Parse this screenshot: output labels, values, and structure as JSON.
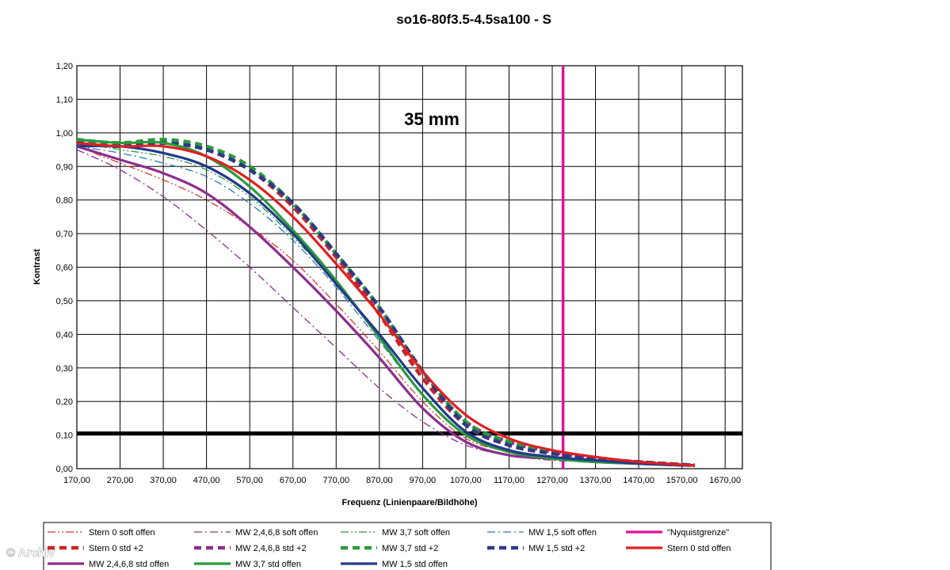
{
  "chart_data": {
    "type": "line",
    "title": "so16-80f3.5-4.5sa100 - S",
    "annotation": "35 mm",
    "xlabel": "Frequenz (Linienpaare/Bildhöhe)",
    "ylabel": "Kontrast",
    "xlim": [
      170,
      1710
    ],
    "ylim": [
      0,
      1.2
    ],
    "x_ticks": [
      "170,00",
      "270,00",
      "370,00",
      "470,00",
      "570,00",
      "670,00",
      "770,00",
      "870,00",
      "970,00",
      "1070,00",
      "1170,00",
      "1270,00",
      "1370,00",
      "1470,00",
      "1570,00",
      "1670,00"
    ],
    "y_ticks": [
      "0,00",
      "0,10",
      "0,20",
      "0,30",
      "0,40",
      "0,50",
      "0,60",
      "0,70",
      "0,80",
      "0,90",
      "1,00",
      "1,10",
      "1,20"
    ],
    "grid": true,
    "legend_position": "bottom",
    "reference_lines": [
      {
        "orientation": "vertical",
        "x": 1295,
        "color": "#e0109a",
        "label": "\"Nyquistgrenze\""
      },
      {
        "orientation": "horizontal",
        "y": 0.105,
        "color": "#000000",
        "label": ""
      }
    ],
    "series": [
      {
        "name": "Stern 0 soft offen",
        "color": "#d83a2a",
        "style": "dashdotdot",
        "x": [
          170,
          270,
          370,
          470,
          570,
          670,
          770,
          870,
          970,
          1070,
          1170,
          1270,
          1370,
          1470,
          1570,
          1600
        ],
        "y": [
          0.96,
          0.91,
          0.86,
          0.8,
          0.72,
          0.62,
          0.49,
          0.35,
          0.2,
          0.09,
          0.05,
          0.03,
          0.02,
          0.015,
          0.01,
          0.01
        ]
      },
      {
        "name": "MW 2,4,6,8 soft offen",
        "color": "#8e2d8e",
        "style": "dashdot",
        "x": [
          170,
          270,
          370,
          470,
          570,
          670,
          770,
          870,
          970,
          1070,
          1170,
          1270,
          1370,
          1470,
          1570,
          1600
        ],
        "y": [
          0.95,
          0.89,
          0.81,
          0.71,
          0.6,
          0.48,
          0.36,
          0.24,
          0.14,
          0.07,
          0.04,
          0.025,
          0.02,
          0.015,
          0.01,
          0.01
        ]
      },
      {
        "name": "MW 3,7 soft offen",
        "color": "#2a9a3a",
        "style": "dashdotdot",
        "x": [
          170,
          270,
          370,
          470,
          570,
          670,
          770,
          870,
          970,
          1070,
          1170,
          1270,
          1370,
          1470,
          1570,
          1600
        ],
        "y": [
          0.97,
          0.95,
          0.93,
          0.89,
          0.81,
          0.69,
          0.55,
          0.39,
          0.22,
          0.1,
          0.05,
          0.03,
          0.02,
          0.015,
          0.01,
          0.01
        ]
      },
      {
        "name": "MW 1,5 soft offen",
        "color": "#2a7ab0",
        "style": "dashdot",
        "x": [
          170,
          270,
          370,
          470,
          570,
          670,
          770,
          870,
          970,
          1070,
          1170,
          1270,
          1370,
          1470,
          1570,
          1600
        ],
        "y": [
          0.96,
          0.94,
          0.91,
          0.87,
          0.79,
          0.68,
          0.54,
          0.38,
          0.22,
          0.1,
          0.05,
          0.03,
          0.02,
          0.015,
          0.01,
          0.01
        ]
      },
      {
        "name": "\"Nyquistgrenze\"",
        "color": "#e0109a",
        "style": "solid",
        "x": [
          1295,
          1295
        ],
        "y": [
          0,
          1.2
        ]
      },
      {
        "name": "Stern 0 std +2",
        "color": "#cc2222",
        "style": "dashed",
        "x": [
          170,
          270,
          370,
          470,
          570,
          670,
          770,
          870,
          970,
          1070,
          1170,
          1270,
          1370,
          1470,
          1570,
          1600
        ],
        "y": [
          0.97,
          0.96,
          0.97,
          0.95,
          0.89,
          0.78,
          0.63,
          0.46,
          0.27,
          0.13,
          0.07,
          0.045,
          0.03,
          0.02,
          0.012,
          0.01
        ]
      },
      {
        "name": "MW 2,4,6,8 std +2",
        "color": "#8e2d8e",
        "style": "dashed",
        "x": [
          170,
          270,
          370,
          470,
          570,
          670,
          770,
          870,
          970,
          1070,
          1170,
          1270,
          1370,
          1470,
          1570,
          1600
        ],
        "y": [
          0.97,
          0.96,
          0.97,
          0.95,
          0.89,
          0.79,
          0.64,
          0.48,
          0.29,
          0.14,
          0.08,
          0.05,
          0.03,
          0.02,
          0.012,
          0.01
        ]
      },
      {
        "name": "MW 3,7 std +2",
        "color": "#2a9a3a",
        "style": "dashed",
        "x": [
          170,
          270,
          370,
          470,
          570,
          670,
          770,
          870,
          970,
          1070,
          1170,
          1270,
          1370,
          1470,
          1570,
          1600
        ],
        "y": [
          0.98,
          0.97,
          0.98,
          0.96,
          0.9,
          0.79,
          0.64,
          0.48,
          0.29,
          0.14,
          0.08,
          0.05,
          0.03,
          0.02,
          0.012,
          0.01
        ]
      },
      {
        "name": "MW 1,5 std +2",
        "color": "#2a3a88",
        "style": "dashed",
        "x": [
          170,
          270,
          370,
          470,
          570,
          670,
          770,
          870,
          970,
          1070,
          1170,
          1270,
          1370,
          1470,
          1570,
          1600
        ],
        "y": [
          0.97,
          0.96,
          0.97,
          0.95,
          0.89,
          0.79,
          0.64,
          0.48,
          0.29,
          0.13,
          0.07,
          0.045,
          0.03,
          0.02,
          0.012,
          0.01
        ]
      },
      {
        "name": "Stern 0 std offen",
        "color": "#e02020",
        "style": "solid",
        "x": [
          170,
          270,
          370,
          470,
          570,
          670,
          770,
          870,
          970,
          1070,
          1170,
          1270,
          1370,
          1470,
          1570,
          1600
        ],
        "y": [
          0.97,
          0.96,
          0.96,
          0.93,
          0.86,
          0.75,
          0.61,
          0.46,
          0.29,
          0.16,
          0.09,
          0.055,
          0.035,
          0.02,
          0.012,
          0.01
        ]
      },
      {
        "name": "MW 2,4,6,8 std offen",
        "color": "#8e2d8e",
        "style": "solid",
        "x": [
          170,
          270,
          370,
          470,
          570,
          670,
          770,
          870,
          970,
          1070,
          1170,
          1270,
          1370,
          1470,
          1570,
          1600
        ],
        "y": [
          0.96,
          0.92,
          0.88,
          0.82,
          0.72,
          0.6,
          0.47,
          0.33,
          0.18,
          0.08,
          0.04,
          0.03,
          0.02,
          0.015,
          0.01,
          0.01
        ]
      },
      {
        "name": "MW 3,7 std offen",
        "color": "#2a9a3a",
        "style": "solid",
        "x": [
          170,
          270,
          370,
          470,
          570,
          670,
          770,
          870,
          970,
          1070,
          1170,
          1270,
          1370,
          1470,
          1570,
          1600
        ],
        "y": [
          0.98,
          0.97,
          0.97,
          0.93,
          0.84,
          0.71,
          0.56,
          0.39,
          0.22,
          0.1,
          0.05,
          0.03,
          0.02,
          0.015,
          0.01,
          0.01
        ]
      },
      {
        "name": "MW 1,5 std offen",
        "color": "#223a8a",
        "style": "solid",
        "x": [
          170,
          270,
          370,
          470,
          570,
          670,
          770,
          870,
          970,
          1070,
          1170,
          1270,
          1370,
          1470,
          1570,
          1600
        ],
        "y": [
          0.96,
          0.96,
          0.94,
          0.9,
          0.82,
          0.7,
          0.55,
          0.4,
          0.24,
          0.11,
          0.055,
          0.035,
          0.025,
          0.015,
          0.01,
          0.01
        ]
      }
    ],
    "legend_order": [
      0,
      1,
      2,
      3,
      4,
      5,
      6,
      7,
      8,
      9,
      10,
      11,
      12
    ]
  },
  "watermark": "© Archiv"
}
